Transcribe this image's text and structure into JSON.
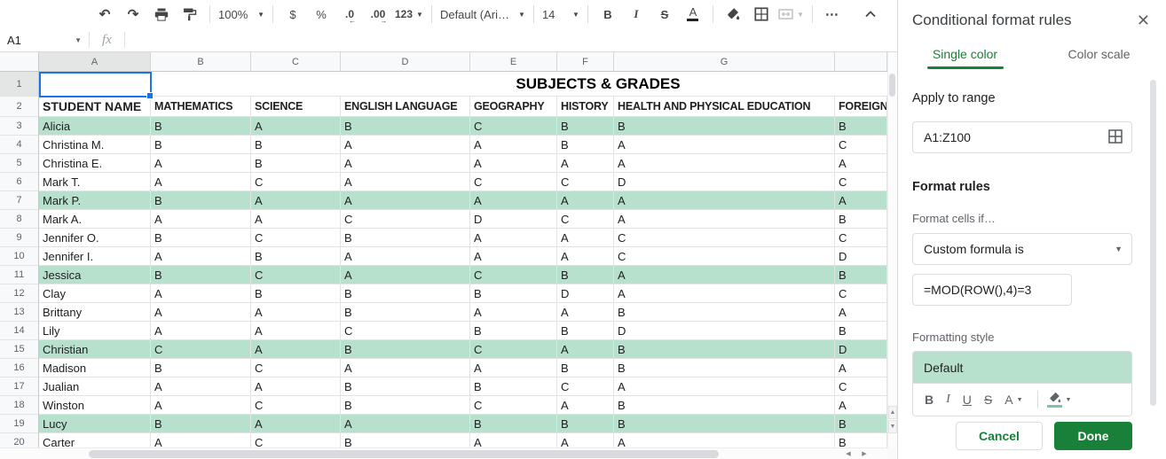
{
  "toolbar": {
    "zoom": "100%",
    "currency": "$",
    "percent": "%",
    "decrease_decimal": ".0",
    "decrease_arrow": "←",
    "increase_decimal": ".00",
    "increase_arrow": "→",
    "more_formats": "123",
    "font": "Default (Ari…",
    "font_size": "14",
    "bold": "B",
    "italic": "I",
    "strikethrough": "S",
    "text_color": "A",
    "more": "⋯"
  },
  "formula_bar": {
    "cell_ref": "A1",
    "fx_label": "fx"
  },
  "sheet": {
    "title": "SUBJECTS & GRADES",
    "column_letters": [
      "A",
      "B",
      "C",
      "D",
      "E",
      "F",
      "G",
      ""
    ],
    "header_cells": [
      "STUDENT NAME",
      "MATHEMATICS",
      "SCIENCE",
      "ENGLISH LANGUAGE",
      "GEOGRAPHY",
      "HISTORY",
      "HEALTH AND PHYSICAL EDUCATION",
      "FOREIGN"
    ],
    "highlight_color": "#b7e1cd",
    "selected_cell": "A1",
    "rows": [
      {
        "n": 3,
        "name": "Alicia",
        "grades": [
          "B",
          "A",
          "B",
          "C",
          "B",
          "B",
          "B"
        ],
        "highlight": true
      },
      {
        "n": 4,
        "name": "Christina M.",
        "grades": [
          "B",
          "B",
          "A",
          "A",
          "B",
          "A",
          "C"
        ],
        "highlight": false
      },
      {
        "n": 5,
        "name": "Christina E.",
        "grades": [
          "A",
          "B",
          "A",
          "A",
          "A",
          "A",
          "A"
        ],
        "highlight": false
      },
      {
        "n": 6,
        "name": "Mark T.",
        "grades": [
          "A",
          "C",
          "A",
          "C",
          "C",
          "D",
          "C"
        ],
        "highlight": false
      },
      {
        "n": 7,
        "name": "Mark P.",
        "grades": [
          "B",
          "A",
          "A",
          "A",
          "A",
          "A",
          "A"
        ],
        "highlight": true
      },
      {
        "n": 8,
        "name": "Mark A.",
        "grades": [
          "A",
          "A",
          "C",
          "D",
          "C",
          "A",
          "B"
        ],
        "highlight": false
      },
      {
        "n": 9,
        "name": "Jennifer O.",
        "grades": [
          "B",
          "C",
          "B",
          "A",
          "A",
          "C",
          "C"
        ],
        "highlight": false
      },
      {
        "n": 10,
        "name": "Jennifer I.",
        "grades": [
          "A",
          "B",
          "A",
          "A",
          "A",
          "C",
          "D"
        ],
        "highlight": false
      },
      {
        "n": 11,
        "name": "Jessica",
        "grades": [
          "B",
          "C",
          "A",
          "C",
          "B",
          "A",
          "B"
        ],
        "highlight": true
      },
      {
        "n": 12,
        "name": "Clay",
        "grades": [
          "A",
          "B",
          "B",
          "B",
          "D",
          "A",
          "C"
        ],
        "highlight": false
      },
      {
        "n": 13,
        "name": "Brittany",
        "grades": [
          "A",
          "A",
          "B",
          "A",
          "A",
          "B",
          "A"
        ],
        "highlight": false
      },
      {
        "n": 14,
        "name": "Lily",
        "grades": [
          "A",
          "A",
          "C",
          "B",
          "B",
          "D",
          "B"
        ],
        "highlight": false
      },
      {
        "n": 15,
        "name": "Christian",
        "grades": [
          "C",
          "A",
          "B",
          "C",
          "A",
          "B",
          "D"
        ],
        "highlight": true
      },
      {
        "n": 16,
        "name": "Madison",
        "grades": [
          "B",
          "C",
          "A",
          "A",
          "B",
          "B",
          "A"
        ],
        "highlight": false
      },
      {
        "n": 17,
        "name": "Jualian",
        "grades": [
          "A",
          "A",
          "B",
          "B",
          "C",
          "A",
          "C"
        ],
        "highlight": false
      },
      {
        "n": 18,
        "name": "Winston",
        "grades": [
          "A",
          "C",
          "B",
          "C",
          "A",
          "B",
          "A"
        ],
        "highlight": false
      },
      {
        "n": 19,
        "name": "Lucy",
        "grades": [
          "B",
          "A",
          "A",
          "B",
          "B",
          "B",
          "B"
        ],
        "highlight": true
      },
      {
        "n": 20,
        "name": "Carter",
        "grades": [
          "A",
          "C",
          "B",
          "A",
          "A",
          "A",
          "B"
        ],
        "highlight": false
      }
    ]
  },
  "panel": {
    "title": "Conditional format rules",
    "close": "✕",
    "tabs": [
      {
        "label": "Single color",
        "active": true
      },
      {
        "label": "Color scale",
        "active": false
      }
    ],
    "apply_to_range_label": "Apply to range",
    "range_value": "A1:Z100",
    "format_rules_label": "Format rules",
    "format_cells_if_label": "Format cells if…",
    "condition_value": "Custom formula is",
    "formula_value": "=MOD(ROW(),4)=3",
    "formatting_style_label": "Formatting style",
    "style_preview_text": "Default",
    "style_buttons": [
      "B",
      "I",
      "U",
      "S",
      "A"
    ],
    "cancel_label": "Cancel",
    "done_label": "Done",
    "accent_green": "#188038",
    "preview_bg": "#b7e1cd"
  }
}
